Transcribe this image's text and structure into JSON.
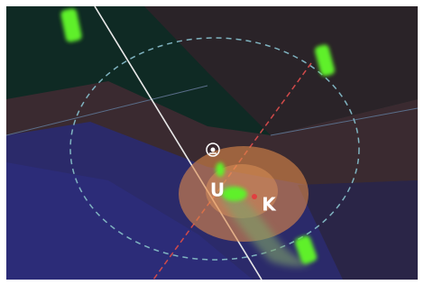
{
  "markers": [
    {
      "label": "U"
    },
    {
      "label": "K"
    }
  ]
}
